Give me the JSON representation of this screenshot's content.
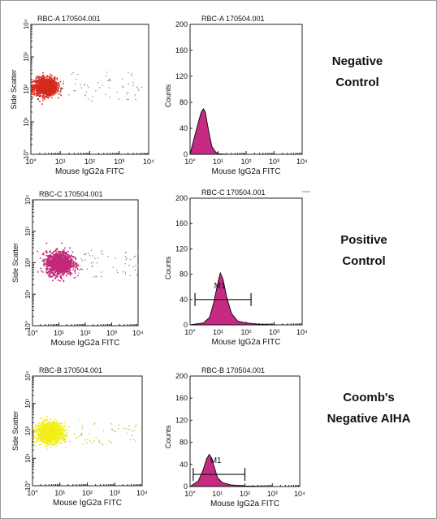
{
  "colors": {
    "dot_red": "#d42a1e",
    "dot_magenta": "#c2287a",
    "dot_yellow": "#f2ee17",
    "histogram_fill": "#c62a82",
    "axis": "#222222",
    "text": "#111111"
  },
  "rows": [
    {
      "group_label": [
        "Negative",
        "Control"
      ],
      "dot_plot": {
        "title": "RBC-A 170504.001",
        "xlabel": "Mouse IgG2a FITC",
        "ylabel": "Side Scatter",
        "dot_color": "#d42a1e",
        "x_ticks": [
          "10°",
          "10¹",
          "10²",
          "10³",
          "10⁴"
        ],
        "y_ticks": [
          "10°",
          "10¹",
          "10²",
          "10³",
          "10⁴"
        ]
      },
      "histogram": {
        "title": "RBC-A 170504.001",
        "xlabel": "Mouse IgG2a FITC",
        "ylabel": "Counts",
        "x_ticks": [
          "10°",
          "10¹",
          "10²",
          "10³",
          "10⁴"
        ],
        "y_ticks": [
          "0",
          "40",
          "80",
          "120",
          "160",
          "200"
        ],
        "gate_label": ""
      }
    },
    {
      "group_label": [
        "Positive",
        "Control"
      ],
      "dot_plot": {
        "title": "RBC-C 170504.001",
        "xlabel": "Mouse IgG2a FITC",
        "ylabel": "Side Scatter",
        "dot_color": "#c2287a",
        "x_ticks": [
          "10°",
          "10¹",
          "10²",
          "10³",
          "10⁴"
        ],
        "y_ticks": [
          "10°",
          "10¹",
          "10²",
          "10³",
          "10⁴"
        ]
      },
      "histogram": {
        "title": "RBC-C 170504.001",
        "xlabel": "Mouse IgG2a FITC",
        "ylabel": "Counts",
        "x_ticks": [
          "10°",
          "10¹",
          "10²",
          "10³",
          "10⁴"
        ],
        "y_ticks": [
          "0",
          "40",
          "80",
          "120",
          "160",
          "200"
        ],
        "gate_label": "M1"
      }
    },
    {
      "group_label": [
        "Coomb's",
        "Negative AIHA"
      ],
      "dot_plot": {
        "title": "RBC-B 170504.001",
        "xlabel": "Mouse IgG2a FITC",
        "ylabel": "Side Scatter",
        "dot_color": "#f2ee17",
        "x_ticks": [
          "10°",
          "10¹",
          "10²",
          "10³",
          "10⁴"
        ],
        "y_ticks": [
          "10°",
          "10¹",
          "10²",
          "10³",
          "10⁴"
        ]
      },
      "histogram": {
        "title": "RBC-B 170504.001",
        "xlabel": "Mouse IgG2a FITC",
        "ylabel": "Counts",
        "x_ticks": [
          "10°",
          "10¹",
          "10²",
          "10³",
          "10⁴"
        ],
        "y_ticks": [
          "0",
          "40",
          "80",
          "120",
          "160",
          "200"
        ],
        "gate_label": "M1"
      }
    }
  ],
  "chart_data": [
    {
      "type": "scatter",
      "title": "RBC-A 170504.001",
      "xlabel": "Mouse IgG2a FITC",
      "ylabel": "Side Scatter",
      "x_scale": "log",
      "y_scale": "log",
      "xlim": [
        1,
        10000
      ],
      "ylim": [
        1,
        10000
      ],
      "population": {
        "center": [
          3,
          125
        ],
        "spread_decades": [
          0.35,
          0.22
        ],
        "color": "#d42a1e"
      }
    },
    {
      "type": "area",
      "title": "RBC-A 170504.001",
      "xlabel": "Mouse IgG2a FITC",
      "ylabel": "Counts",
      "x_scale": "log",
      "xlim": [
        1,
        10000
      ],
      "ylim": [
        0,
        200
      ],
      "x": [
        1,
        1.4,
        2,
        2.5,
        3,
        3.5,
        4,
        5,
        6,
        8,
        10,
        20
      ],
      "y": [
        0,
        25,
        50,
        65,
        70,
        65,
        50,
        28,
        12,
        4,
        1,
        0
      ]
    },
    {
      "type": "scatter",
      "title": "RBC-C 170504.001",
      "xlabel": "Mouse IgG2a FITC",
      "ylabel": "Side Scatter",
      "x_scale": "log",
      "y_scale": "log",
      "xlim": [
        1,
        10000
      ],
      "ylim": [
        1,
        10000
      ],
      "population": {
        "center": [
          10,
          100
        ],
        "spread_decades": [
          0.45,
          0.3
        ],
        "color": "#c2287a"
      }
    },
    {
      "type": "area",
      "title": "RBC-C 170504.001",
      "xlabel": "Mouse IgG2a FITC",
      "ylabel": "Counts",
      "x_scale": "log",
      "xlim": [
        1,
        10000
      ],
      "ylim": [
        0,
        200
      ],
      "x": [
        1,
        3,
        5,
        7,
        10,
        12,
        15,
        20,
        30,
        50,
        100,
        300,
        1000
      ],
      "y": [
        0,
        3,
        12,
        35,
        68,
        82,
        72,
        45,
        18,
        6,
        3,
        1,
        0
      ],
      "markers": [
        {
          "label": "M1",
          "range": [
            1.5,
            150
          ],
          "y": 40
        }
      ]
    },
    {
      "type": "scatter",
      "title": "RBC-B 170504.001",
      "xlabel": "Mouse IgG2a FITC",
      "ylabel": "Side Scatter",
      "x_scale": "log",
      "y_scale": "log",
      "xlim": [
        1,
        10000
      ],
      "ylim": [
        1,
        10000
      ],
      "population": {
        "center": [
          4,
          90
        ],
        "spread_decades": [
          0.42,
          0.3
        ],
        "color": "#f2ee17"
      }
    },
    {
      "type": "area",
      "title": "RBC-B 170504.001",
      "xlabel": "Mouse IgG2a FITC",
      "ylabel": "Counts",
      "x_scale": "log",
      "xlim": [
        1,
        10000
      ],
      "ylim": [
        0,
        200
      ],
      "x": [
        1,
        2,
        3,
        4,
        5,
        6,
        8,
        10,
        15,
        30,
        100,
        1000
      ],
      "y": [
        0,
        10,
        30,
        50,
        58,
        52,
        32,
        16,
        7,
        3,
        1,
        0
      ],
      "markers": [
        {
          "label": "M1",
          "range": [
            1.3,
            100
          ],
          "y": 22
        }
      ]
    }
  ]
}
